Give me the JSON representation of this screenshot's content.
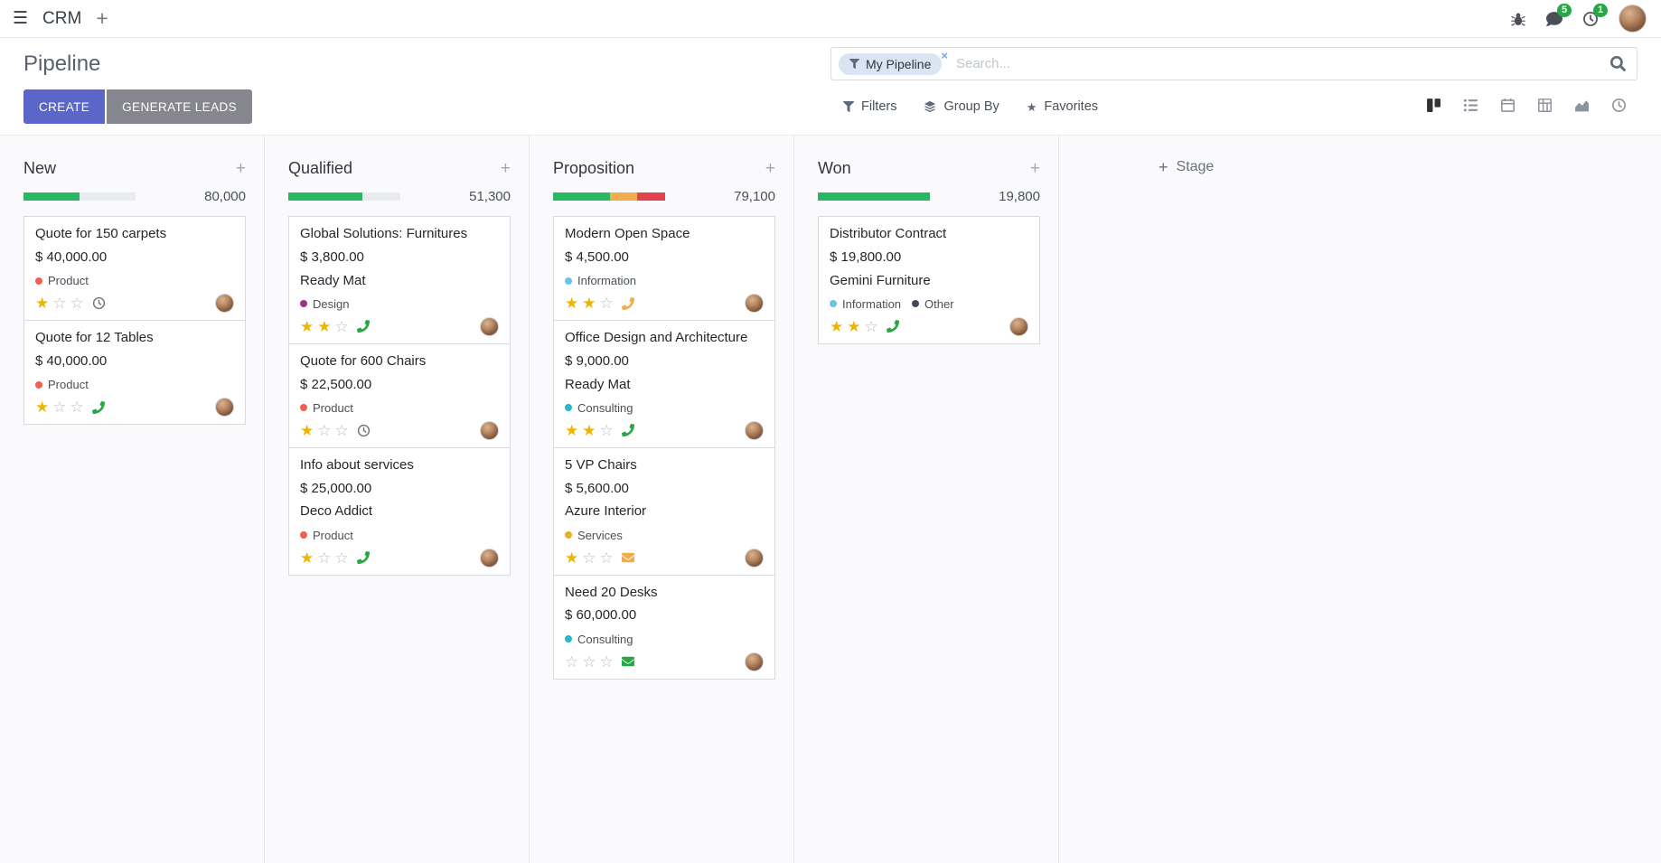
{
  "icons": {
    "hamburger": "☰",
    "plus": "+",
    "close": "×",
    "star": "★"
  },
  "navbar": {
    "app": "CRM",
    "messages_badge": "5",
    "activities_badge": "1"
  },
  "control_panel": {
    "title": "Pipeline",
    "create_label": "CREATE",
    "generate_leads_label": "GENERATE LEADS",
    "search_facet": "My Pipeline",
    "search_placeholder": "Search...",
    "filters_label": "Filters",
    "group_by_label": "Group By",
    "favorites_label": "Favorites"
  },
  "view_switcher": {
    "views": [
      "kanban",
      "list",
      "calendar",
      "pivot",
      "graph",
      "activity"
    ],
    "active": "kanban"
  },
  "board": {
    "add_stage_label": "Stage",
    "columns": [
      {
        "name": "New",
        "total": "80,000",
        "progress": [
          {
            "color": "#2ab763",
            "pct": 50
          },
          {
            "color": "#e9ecef",
            "pct": 50
          }
        ],
        "cards": [
          {
            "title": "Quote for 150 carpets",
            "amount": "$ 40,000.00",
            "partner": "",
            "tags": [
              {
                "label": "Product",
                "color": "#f06050"
              }
            ],
            "stars": 1,
            "activity": {
              "icon": "clock",
              "color": "#6d747c"
            }
          },
          {
            "title": "Quote for 12 Tables",
            "amount": "$ 40,000.00",
            "partner": "",
            "tags": [
              {
                "label": "Product",
                "color": "#f06050"
              }
            ],
            "stars": 1,
            "activity": {
              "icon": "phone",
              "color": "#28a745"
            }
          }
        ]
      },
      {
        "name": "Qualified",
        "total": "51,300",
        "progress": [
          {
            "color": "#2ab763",
            "pct": 66
          },
          {
            "color": "#e9ecef",
            "pct": 34
          }
        ],
        "cards": [
          {
            "title": "Global Solutions: Furnitures",
            "amount": "$ 3,800.00",
            "partner": "Ready Mat",
            "tags": [
              {
                "label": "Design",
                "color": "#a5307f"
              }
            ],
            "stars": 2,
            "activity": {
              "icon": "phone",
              "color": "#28a745"
            }
          },
          {
            "title": "Quote for 600 Chairs",
            "amount": "$ 22,500.00",
            "partner": "",
            "tags": [
              {
                "label": "Product",
                "color": "#f06050"
              }
            ],
            "stars": 1,
            "activity": {
              "icon": "clock",
              "color": "#6d747c"
            }
          },
          {
            "title": "Info about services",
            "amount": "$ 25,000.00",
            "partner": "Deco Addict",
            "tags": [
              {
                "label": "Product",
                "color": "#f06050"
              }
            ],
            "stars": 1,
            "activity": {
              "icon": "phone",
              "color": "#28a745"
            }
          }
        ]
      },
      {
        "name": "Proposition",
        "total": "79,100",
        "progress": [
          {
            "color": "#2ab763",
            "pct": 51
          },
          {
            "color": "#f0ad4e",
            "pct": 24
          },
          {
            "color": "#e2434e",
            "pct": 25
          }
        ],
        "cards": [
          {
            "title": "Modern Open Space",
            "amount": "$ 4,500.00",
            "partner": "",
            "tags": [
              {
                "label": "Information",
                "color": "#6cc1ed"
              }
            ],
            "stars": 2,
            "activity": {
              "icon": "phone",
              "color": "#f0ad4e"
            }
          },
          {
            "title": "Office Design and Architecture",
            "amount": "$ 9,000.00",
            "partner": "Ready Mat",
            "tags": [
              {
                "label": "Consulting",
                "color": "#29b6c5"
              }
            ],
            "stars": 2,
            "activity": {
              "icon": "phone",
              "color": "#28a745"
            }
          },
          {
            "title": "5 VP Chairs",
            "amount": "$ 5,600.00",
            "partner": "Azure Interior",
            "tags": [
              {
                "label": "Services",
                "color": "#e7b022"
              }
            ],
            "stars": 1,
            "activity": {
              "icon": "email",
              "color": "#f0ad4e"
            }
          },
          {
            "title": "Need 20 Desks",
            "amount": "$ 60,000.00",
            "partner": "",
            "tags": [
              {
                "label": "Consulting",
                "color": "#29b6c5"
              }
            ],
            "stars": 0,
            "activity": {
              "icon": "email",
              "color": "#28a745"
            }
          }
        ]
      },
      {
        "name": "Won",
        "total": "19,800",
        "progress": [
          {
            "color": "#2ab763",
            "pct": 100
          }
        ],
        "cards": [
          {
            "title": "Distributor Contract",
            "amount": "$ 19,800.00",
            "partner": "Gemini Furniture",
            "tags": [
              {
                "label": "Information",
                "color": "#6cc1ed"
              },
              {
                "label": "Other",
                "color": "#3f4a5f"
              }
            ],
            "stars": 2,
            "activity": {
              "icon": "phone",
              "color": "#28a745"
            }
          }
        ]
      }
    ]
  }
}
